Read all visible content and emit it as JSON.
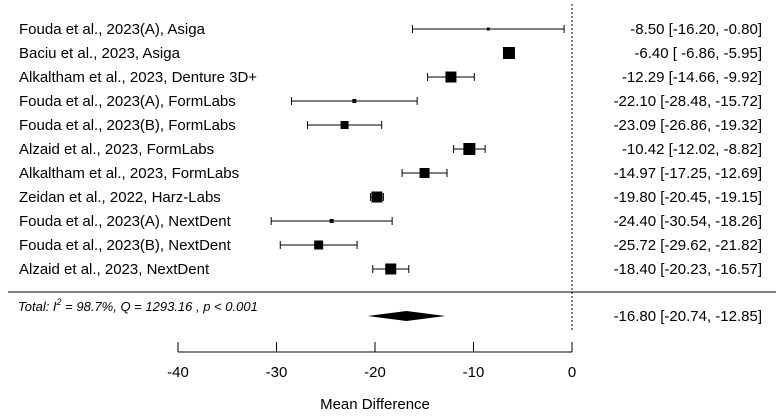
{
  "chart_data": {
    "type": "forest",
    "xlabel": "Mean Difference",
    "xlim": [
      -40,
      0
    ],
    "ticks": [
      -40,
      -30,
      -20,
      -10,
      0
    ],
    "tick_labels": [
      "-40",
      "-30",
      "-20",
      "-10",
      "0"
    ],
    "reference_line": 0,
    "studies": [
      {
        "label": "Fouda et al., 2023(A), Asiga",
        "md": -8.5,
        "lo": -16.2,
        "hi": -0.8,
        "ci_text": "-8.50 [-16.20,  -0.80]"
      },
      {
        "label": "Baciu et al., 2023, Asiga",
        "md": -6.4,
        "lo": -6.86,
        "hi": -5.95,
        "ci_text": "-6.40 [ -6.86,  -5.95]"
      },
      {
        "label": "Alkaltham et al., 2023, Denture 3D+",
        "md": -12.29,
        "lo": -14.66,
        "hi": -9.92,
        "ci_text": "-12.29 [-14.66,  -9.92]"
      },
      {
        "label": "Fouda et al., 2023(A), FormLabs",
        "md": -22.1,
        "lo": -28.48,
        "hi": -15.72,
        "ci_text": "-22.10 [-28.48, -15.72]"
      },
      {
        "label": "Fouda et al., 2023(B), FormLabs",
        "md": -23.09,
        "lo": -26.86,
        "hi": -19.32,
        "ci_text": "-23.09 [-26.86, -19.32]"
      },
      {
        "label": "Alzaid et al., 2023, FormLabs",
        "md": -10.42,
        "lo": -12.02,
        "hi": -8.82,
        "ci_text": "-10.42 [-12.02,  -8.82]"
      },
      {
        "label": "Alkaltham et al., 2023, FormLabs",
        "md": -14.97,
        "lo": -17.25,
        "hi": -12.69,
        "ci_text": "-14.97 [-17.25, -12.69]"
      },
      {
        "label": "Zeidan et al., 2022, Harz-Labs",
        "md": -19.8,
        "lo": -20.45,
        "hi": -19.15,
        "ci_text": "-19.80 [-20.45, -19.15]"
      },
      {
        "label": "Fouda et al., 2023(A), NextDent",
        "md": -24.4,
        "lo": -30.54,
        "hi": -18.26,
        "ci_text": "-24.40 [-30.54, -18.26]"
      },
      {
        "label": "Fouda et al., 2023(B), NextDent",
        "md": -25.72,
        "lo": -29.62,
        "hi": -21.82,
        "ci_text": "-25.72 [-29.62, -21.82]"
      },
      {
        "label": "Alzaid et al., 2023, NextDent",
        "md": -18.4,
        "lo": -20.23,
        "hi": -16.57,
        "ci_text": "-18.40 [-20.23, -16.57]"
      }
    ],
    "total": {
      "prefix": "Total: I",
      "superscript": "2",
      "stats": " = 98.7%, Q = 1293.16 , p  < 0.001",
      "md": -16.8,
      "lo": -20.74,
      "hi": -12.85,
      "ci_text": "-16.80 [-20.74, -12.85]"
    }
  }
}
